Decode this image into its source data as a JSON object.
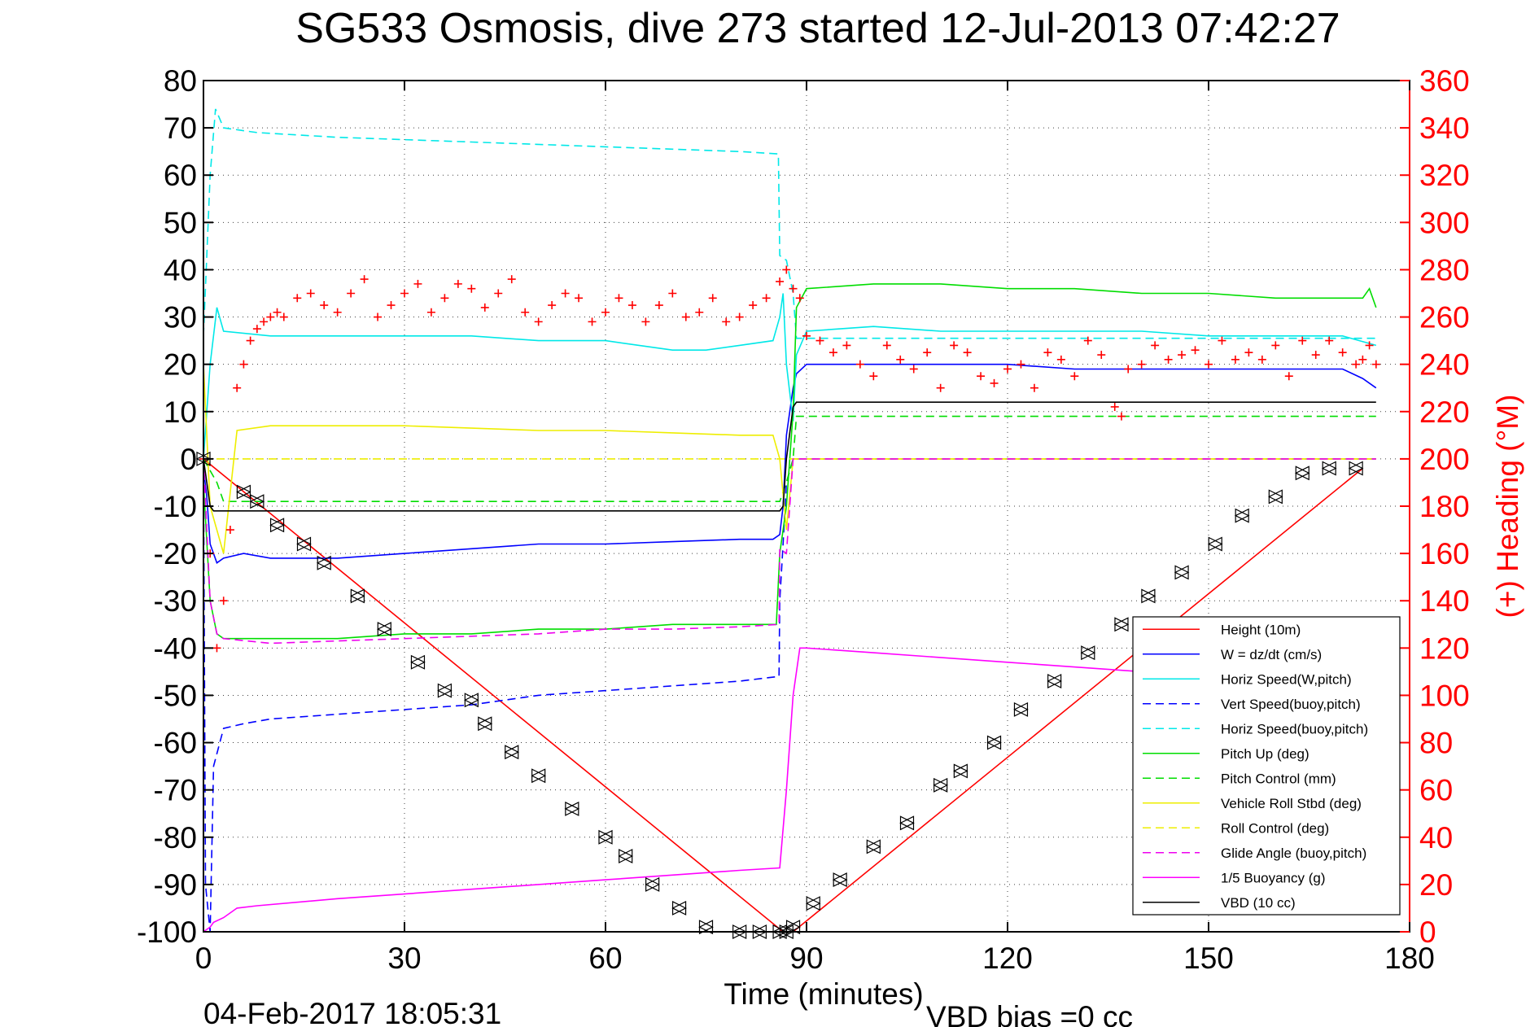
{
  "chart_data": {
    "type": "line",
    "title": "SG533 Osmosis, dive 273 started 12-Jul-2013 07:42:27",
    "xlabel": "Time (minutes)",
    "ylabel": "",
    "y2label": "(+) Heading (°M)",
    "footer_left": "04-Feb-2017 18:05:31",
    "footer_right": "VBD bias =0 cc",
    "xlim": [
      0,
      180
    ],
    "ylim": [
      -100,
      80
    ],
    "y2lim": [
      0,
      360
    ],
    "x_ticks": [
      0,
      30,
      60,
      90,
      120,
      150,
      180
    ],
    "y_ticks": [
      80,
      70,
      60,
      50,
      40,
      30,
      20,
      10,
      0,
      -10,
      -20,
      -30,
      -40,
      -50,
      -60,
      -70,
      -80,
      -90,
      -100
    ],
    "y2_ticks": [
      360,
      340,
      320,
      300,
      280,
      260,
      240,
      220,
      200,
      180,
      160,
      140,
      120,
      100,
      80,
      60,
      40,
      20,
      0
    ],
    "grid": true,
    "legend_position": "bottom-right",
    "series": [
      {
        "name": "Height (10m)",
        "color": "#ff0000",
        "dash": "solid",
        "x": [
          0,
          86.5,
          88,
          173
        ],
        "y": [
          0,
          -100,
          -100,
          -2
        ]
      },
      {
        "name": "W = dz/dt (cm/s)",
        "color": "#0000ff",
        "dash": "solid",
        "x": [
          0,
          0.5,
          1,
          2,
          3,
          6,
          10,
          20,
          30,
          40,
          50,
          60,
          70,
          80,
          85,
          86,
          86.5,
          87,
          88,
          88.5,
          90,
          100,
          110,
          120,
          130,
          140,
          150,
          160,
          170,
          173,
          175
        ],
        "y": [
          -2,
          -8,
          -18,
          -22,
          -21,
          -20,
          -21,
          -21,
          -20,
          -19,
          -18,
          -18,
          -17.5,
          -17,
          -17,
          -16,
          -10,
          5,
          15,
          18,
          20,
          20,
          20,
          20,
          19,
          19,
          19,
          19,
          19,
          17,
          15
        ]
      },
      {
        "name": "Horiz Speed(W,pitch)",
        "color": "#00e8e8",
        "dash": "solid",
        "x": [
          0,
          1,
          2,
          3,
          10,
          20,
          30,
          40,
          50,
          60,
          65,
          70,
          75,
          80,
          85,
          86,
          86.5,
          87,
          88,
          88.5,
          90,
          100,
          110,
          120,
          130,
          140,
          150,
          160,
          170,
          175
        ],
        "y": [
          0,
          20,
          32,
          27,
          26,
          26,
          26,
          26,
          25,
          25,
          24,
          23,
          23,
          24,
          25,
          30,
          35,
          20,
          8,
          22,
          27,
          28,
          27,
          27,
          27,
          27,
          26,
          26,
          26,
          24
        ]
      },
      {
        "name": "Vert Speed(buoy,pitch)",
        "color": "#0000ff",
        "dash": "dash",
        "x": [
          0,
          0.3,
          1,
          1.5,
          3,
          6,
          10,
          20,
          30,
          40,
          50,
          60,
          70,
          80,
          85.9,
          86,
          86.5,
          87,
          88,
          175
        ],
        "y": [
          0,
          -90,
          -100,
          -65,
          -57,
          -56,
          -55,
          -54,
          -53,
          -52,
          -50,
          -49,
          -48,
          -47,
          -46,
          -30,
          -18,
          -5,
          0,
          0
        ]
      },
      {
        "name": "Horiz Speed(buoy,pitch)",
        "color": "#00e8e8",
        "dash": "dash",
        "x": [
          0,
          1,
          1.8,
          3,
          8,
          20,
          40,
          60,
          70,
          80,
          85.8,
          86,
          87,
          88,
          88.5,
          175
        ],
        "y": [
          26,
          60,
          74,
          70,
          69,
          68,
          67,
          66,
          65.5,
          65,
          64.5,
          43,
          42,
          35,
          25.5,
          25.5
        ]
      },
      {
        "name": "Pitch Up (deg)",
        "color": "#00dd00",
        "dash": "solid",
        "x": [
          0,
          1,
          2,
          3,
          10,
          20,
          30,
          40,
          50,
          60,
          70,
          80,
          85.5,
          86,
          87,
          88,
          88.5,
          90,
          100,
          110,
          120,
          130,
          140,
          150,
          160,
          170,
          173,
          174,
          175
        ],
        "y": [
          -5,
          -30,
          -37,
          -38,
          -38,
          -38,
          -37,
          -37,
          -36,
          -36,
          -35,
          -35,
          -35,
          -20,
          -10,
          10,
          32,
          36,
          37,
          37,
          36,
          36,
          35,
          35,
          34,
          34,
          34,
          36,
          32
        ]
      },
      {
        "name": "Pitch Control (mm)",
        "color": "#00dd00",
        "dash": "dash",
        "x": [
          0,
          2,
          3,
          86,
          87,
          88,
          88.5,
          175
        ],
        "y": [
          0,
          -5,
          -9,
          -9,
          -5,
          0,
          9,
          9
        ]
      },
      {
        "name": "Vehicle Roll Stbd (deg)",
        "color": "#eeee00",
        "dash": "solid",
        "x": [
          0,
          1,
          3,
          5,
          10,
          20,
          30,
          40,
          50,
          60,
          70,
          80,
          85,
          86,
          87,
          88,
          90,
          100,
          110,
          120,
          130,
          140,
          150,
          160,
          170,
          175
        ],
        "y": [
          20,
          -10,
          -20,
          6,
          7,
          7,
          7,
          6.5,
          6,
          6,
          5.5,
          5,
          5,
          0,
          -15,
          0,
          0,
          0,
          0,
          0,
          0,
          0,
          0,
          0,
          0,
          0
        ]
      },
      {
        "name": "Roll Control (deg)",
        "color": "#eeee00",
        "dash": "dash",
        "x": [
          0,
          175
        ],
        "y": [
          0,
          0
        ]
      },
      {
        "name": "Glide Angle (buoy,pitch)",
        "color": "#ee00ee",
        "dash": "dash",
        "x": [
          0,
          1,
          2,
          3,
          10,
          20,
          30,
          40,
          50,
          60,
          70,
          80,
          85.9,
          86,
          87,
          88,
          88.5,
          175
        ],
        "y": [
          0,
          -30,
          -37,
          -38,
          -39,
          -38.5,
          -38,
          -37.5,
          -37,
          -36,
          -36,
          -35.5,
          -35,
          -19,
          -20,
          0,
          0,
          0
        ]
      },
      {
        "name": "1/5 Buoyancy (g)",
        "color": "#ff00ff",
        "dash": "solid",
        "x": [
          0,
          1,
          1.5,
          3,
          5,
          8,
          20,
          40,
          60,
          80,
          86,
          87,
          88,
          89,
          90,
          100,
          120,
          140,
          145
        ],
        "y": [
          -100,
          -99,
          -98,
          -97,
          -95,
          -94.5,
          -93,
          -91,
          -89,
          -87,
          -86.5,
          -70,
          -50,
          -40,
          -40,
          -41,
          -43,
          -45,
          -46
        ]
      },
      {
        "name": "VBD (10 cc)",
        "color": "#000000",
        "dash": "solid",
        "x": [
          0,
          1,
          1.5,
          86,
          86.5,
          87,
          88,
          88.5,
          175
        ],
        "y": [
          0,
          -10,
          -11,
          -11,
          -10,
          0,
          11,
          12,
          12
        ]
      }
    ],
    "heading": {
      "name": "(+) Heading",
      "color": "#ff0000",
      "marker": "+",
      "x": [
        0,
        1,
        2,
        3,
        4,
        5,
        6,
        7,
        8,
        9,
        10,
        11,
        12,
        14,
        16,
        18,
        20,
        22,
        24,
        26,
        28,
        30,
        32,
        34,
        36,
        38,
        40,
        42,
        44,
        46,
        48,
        50,
        52,
        54,
        56,
        58,
        60,
        62,
        64,
        66,
        68,
        70,
        72,
        74,
        76,
        78,
        80,
        82,
        84,
        86,
        87,
        88,
        89,
        90,
        92,
        94,
        96,
        98,
        100,
        102,
        104,
        106,
        108,
        110,
        112,
        114,
        116,
        118,
        120,
        122,
        124,
        126,
        128,
        130,
        132,
        134,
        136,
        137,
        138,
        140,
        142,
        144,
        146,
        148,
        150,
        152,
        154,
        156,
        158,
        160,
        162,
        164,
        166,
        168,
        170,
        172,
        173,
        174,
        175
      ],
      "y": [
        200,
        160,
        120,
        140,
        170,
        230,
        240,
        250,
        255,
        258,
        260,
        262,
        260,
        268,
        270,
        265,
        262,
        270,
        276,
        260,
        265,
        270,
        274,
        262,
        268,
        274,
        272,
        264,
        270,
        276,
        262,
        258,
        265,
        270,
        268,
        258,
        262,
        268,
        265,
        258,
        265,
        270,
        260,
        262,
        268,
        258,
        260,
        265,
        268,
        275,
        280,
        272,
        268,
        252,
        250,
        245,
        248,
        240,
        235,
        248,
        242,
        238,
        245,
        230,
        248,
        245,
        235,
        232,
        238,
        240,
        230,
        245,
        242,
        235,
        250,
        244,
        222,
        218,
        238,
        240,
        248,
        242,
        244,
        246,
        240,
        250,
        242,
        245,
        242,
        248,
        235,
        250,
        244,
        250,
        245,
        240,
        242,
        248,
        240
      ]
    },
    "triangles": {
      "color": "#000000",
      "x": [
        0,
        6,
        8,
        11,
        15,
        18,
        23,
        27,
        32,
        36,
        40,
        42,
        46,
        50,
        55,
        60,
        63,
        67,
        71,
        75,
        80,
        83,
        86,
        87,
        88,
        91,
        95,
        100,
        105,
        110,
        113,
        118,
        122,
        127,
        132,
        137,
        141,
        146,
        151,
        155,
        160,
        164,
        168,
        172
      ],
      "y": [
        0,
        -7,
        -9,
        -14,
        -18,
        -22,
        -29,
        -36,
        -43,
        -49,
        -51,
        -56,
        -62,
        -67,
        -74,
        -80,
        -84,
        -90,
        -95,
        -99,
        -100,
        -100,
        -100,
        -100,
        -99,
        -94,
        -89,
        -82,
        -77,
        -69,
        -66,
        -60,
        -53,
        -47,
        -41,
        -35,
        -29,
        -24,
        -18,
        -12,
        -8,
        -3,
        -2,
        -2
      ]
    }
  }
}
